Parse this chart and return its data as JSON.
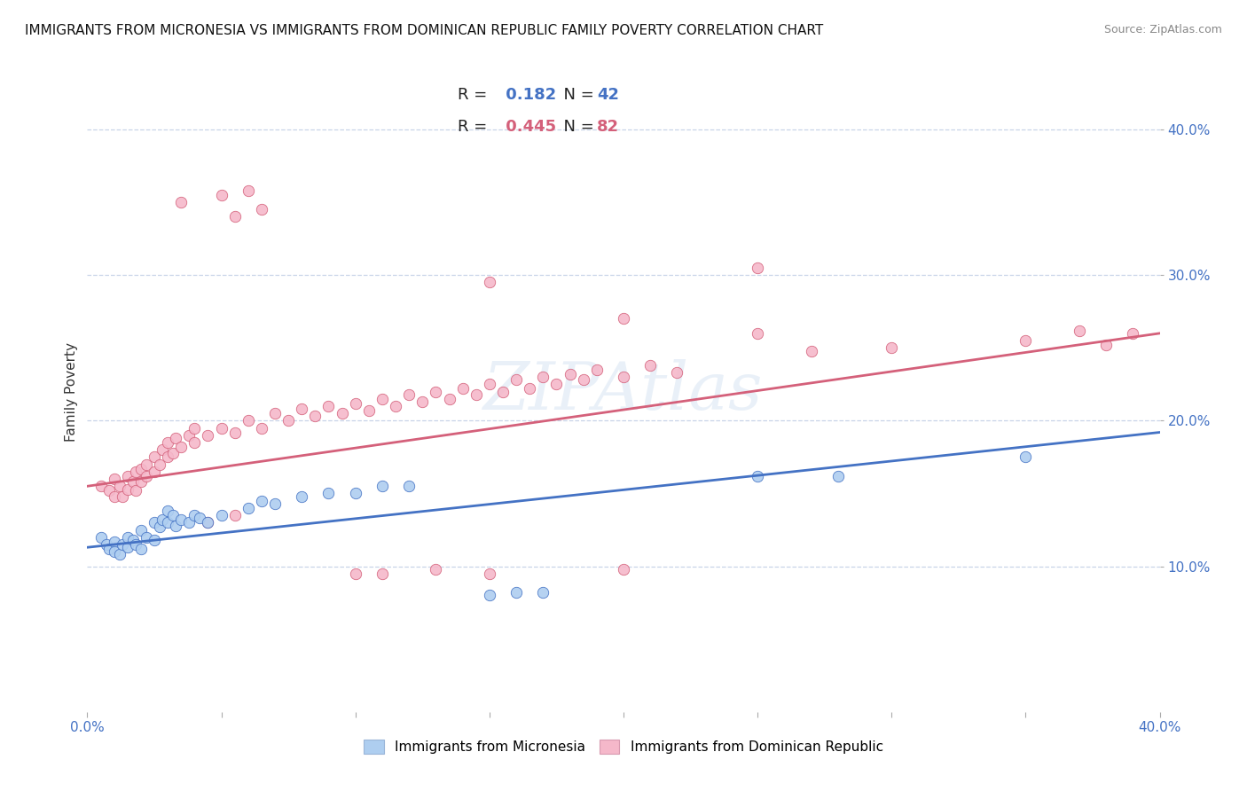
{
  "title": "IMMIGRANTS FROM MICRONESIA VS IMMIGRANTS FROM DOMINICAN REPUBLIC FAMILY POVERTY CORRELATION CHART",
  "source": "Source: ZipAtlas.com",
  "ylabel": "Family Poverty",
  "xlabel": "",
  "watermark": "ZIPAtlas",
  "xlim": [
    0.0,
    0.4
  ],
  "ylim": [
    0.0,
    0.44
  ],
  "blue_R": 0.182,
  "blue_N": 42,
  "pink_R": 0.445,
  "pink_N": 82,
  "blue_color": "#aecef0",
  "pink_color": "#f5b8ca",
  "blue_line_color": "#4472c4",
  "pink_line_color": "#d4607a",
  "background_color": "#ffffff",
  "grid_color": "#c8d4e8",
  "title_fontsize": 11,
  "axis_label_fontsize": 11,
  "tick_fontsize": 11,
  "legend_fontsize": 13,
  "blue_scatter": [
    [
      0.005,
      0.12
    ],
    [
      0.007,
      0.115
    ],
    [
      0.008,
      0.112
    ],
    [
      0.01,
      0.117
    ],
    [
      0.01,
      0.11
    ],
    [
      0.012,
      0.108
    ],
    [
      0.013,
      0.115
    ],
    [
      0.015,
      0.113
    ],
    [
      0.015,
      0.12
    ],
    [
      0.017,
      0.118
    ],
    [
      0.018,
      0.115
    ],
    [
      0.02,
      0.112
    ],
    [
      0.02,
      0.125
    ],
    [
      0.022,
      0.12
    ],
    [
      0.025,
      0.118
    ],
    [
      0.025,
      0.13
    ],
    [
      0.027,
      0.127
    ],
    [
      0.028,
      0.132
    ],
    [
      0.03,
      0.13
    ],
    [
      0.03,
      0.138
    ],
    [
      0.032,
      0.135
    ],
    [
      0.033,
      0.128
    ],
    [
      0.035,
      0.132
    ],
    [
      0.038,
      0.13
    ],
    [
      0.04,
      0.135
    ],
    [
      0.042,
      0.133
    ],
    [
      0.045,
      0.13
    ],
    [
      0.05,
      0.135
    ],
    [
      0.06,
      0.14
    ],
    [
      0.065,
      0.145
    ],
    [
      0.07,
      0.143
    ],
    [
      0.08,
      0.148
    ],
    [
      0.09,
      0.15
    ],
    [
      0.1,
      0.15
    ],
    [
      0.11,
      0.155
    ],
    [
      0.12,
      0.155
    ],
    [
      0.15,
      0.08
    ],
    [
      0.16,
      0.082
    ],
    [
      0.17,
      0.082
    ],
    [
      0.25,
      0.162
    ],
    [
      0.28,
      0.162
    ],
    [
      0.35,
      0.175
    ]
  ],
  "pink_scatter": [
    [
      0.005,
      0.155
    ],
    [
      0.008,
      0.152
    ],
    [
      0.01,
      0.148
    ],
    [
      0.01,
      0.16
    ],
    [
      0.012,
      0.155
    ],
    [
      0.013,
      0.148
    ],
    [
      0.015,
      0.153
    ],
    [
      0.015,
      0.162
    ],
    [
      0.017,
      0.158
    ],
    [
      0.018,
      0.152
    ],
    [
      0.018,
      0.165
    ],
    [
      0.02,
      0.158
    ],
    [
      0.02,
      0.167
    ],
    [
      0.022,
      0.162
    ],
    [
      0.022,
      0.17
    ],
    [
      0.025,
      0.165
    ],
    [
      0.025,
      0.175
    ],
    [
      0.027,
      0.17
    ],
    [
      0.028,
      0.18
    ],
    [
      0.03,
      0.175
    ],
    [
      0.03,
      0.185
    ],
    [
      0.032,
      0.178
    ],
    [
      0.033,
      0.188
    ],
    [
      0.035,
      0.182
    ],
    [
      0.038,
      0.19
    ],
    [
      0.04,
      0.185
    ],
    [
      0.04,
      0.195
    ],
    [
      0.045,
      0.19
    ],
    [
      0.05,
      0.195
    ],
    [
      0.055,
      0.192
    ],
    [
      0.06,
      0.2
    ],
    [
      0.065,
      0.195
    ],
    [
      0.07,
      0.205
    ],
    [
      0.075,
      0.2
    ],
    [
      0.08,
      0.208
    ],
    [
      0.085,
      0.203
    ],
    [
      0.09,
      0.21
    ],
    [
      0.095,
      0.205
    ],
    [
      0.1,
      0.212
    ],
    [
      0.105,
      0.207
    ],
    [
      0.11,
      0.215
    ],
    [
      0.115,
      0.21
    ],
    [
      0.12,
      0.218
    ],
    [
      0.125,
      0.213
    ],
    [
      0.13,
      0.22
    ],
    [
      0.135,
      0.215
    ],
    [
      0.14,
      0.222
    ],
    [
      0.145,
      0.218
    ],
    [
      0.15,
      0.225
    ],
    [
      0.155,
      0.22
    ],
    [
      0.16,
      0.228
    ],
    [
      0.165,
      0.222
    ],
    [
      0.17,
      0.23
    ],
    [
      0.175,
      0.225
    ],
    [
      0.18,
      0.232
    ],
    [
      0.185,
      0.228
    ],
    [
      0.19,
      0.235
    ],
    [
      0.2,
      0.23
    ],
    [
      0.21,
      0.238
    ],
    [
      0.22,
      0.233
    ],
    [
      0.035,
      0.35
    ],
    [
      0.05,
      0.355
    ],
    [
      0.055,
      0.34
    ],
    [
      0.06,
      0.358
    ],
    [
      0.065,
      0.345
    ],
    [
      0.15,
      0.295
    ],
    [
      0.2,
      0.27
    ],
    [
      0.25,
      0.26
    ],
    [
      0.27,
      0.248
    ],
    [
      0.3,
      0.25
    ],
    [
      0.35,
      0.255
    ],
    [
      0.37,
      0.262
    ],
    [
      0.38,
      0.252
    ],
    [
      0.39,
      0.26
    ],
    [
      0.25,
      0.305
    ],
    [
      0.1,
      0.095
    ],
    [
      0.15,
      0.095
    ],
    [
      0.2,
      0.098
    ],
    [
      0.045,
      0.13
    ],
    [
      0.055,
      0.135
    ],
    [
      0.11,
      0.095
    ],
    [
      0.13,
      0.098
    ]
  ],
  "blue_line_x": [
    0.0,
    0.4
  ],
  "blue_line_y": [
    0.113,
    0.192
  ],
  "pink_line_x": [
    0.0,
    0.4
  ],
  "pink_line_y": [
    0.155,
    0.26
  ]
}
